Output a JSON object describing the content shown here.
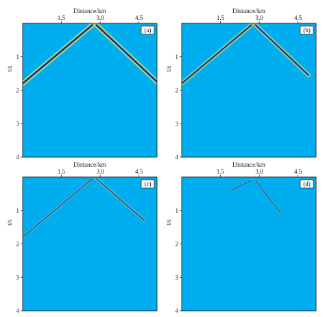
{
  "colors": {
    "background": "#00aeef",
    "peak_dark": "#1a1a6e",
    "peak_mid": "#2f5fd0",
    "lobe_yellow": "#e8e84a",
    "lobe_green": "#7fd88a",
    "frame": "#222222"
  },
  "panels": [
    {
      "tag": "(a)",
      "xlabel": "Distance/km",
      "ylabel": "t/s",
      "xticks": [
        "1.5",
        "3.0",
        "4.5"
      ],
      "yticks": [
        "1",
        "2",
        "3",
        "4"
      ],
      "xrange_km": [
        0,
        5.2
      ],
      "yrange_s": [
        0,
        4
      ],
      "apex_km": 2.75,
      "events": [
        {
          "side": "left",
          "t_start": 0.05,
          "t_end": 1.8,
          "strength": 1.0,
          "extent": 1.0
        },
        {
          "side": "right",
          "t_start": 0.05,
          "t_end": 1.75,
          "strength": 1.0,
          "extent": 1.0
        }
      ]
    },
    {
      "tag": "(b)",
      "xlabel": "Distance/km",
      "ylabel": "t/s",
      "xticks": [
        "1.5",
        "3.0",
        "4.5"
      ],
      "yticks": [
        "1",
        "2",
        "3",
        "4"
      ],
      "xrange_km": [
        0,
        5.2
      ],
      "yrange_s": [
        0,
        4
      ],
      "apex_km": 2.75,
      "events": [
        {
          "side": "left",
          "t_start": 0.05,
          "t_end": 1.8,
          "strength": 0.85,
          "extent": 1.0
        },
        {
          "side": "right",
          "t_start": 0.05,
          "t_end": 1.55,
          "strength": 0.85,
          "extent": 0.88
        }
      ]
    },
    {
      "tag": "(c)",
      "xlabel": "Distance/km",
      "ylabel": "t/s",
      "xticks": [
        "1.5",
        "3.0",
        "4.5"
      ],
      "yticks": [
        "1",
        "2",
        "3",
        "4"
      ],
      "xrange_km": [
        0,
        5.2
      ],
      "yrange_s": [
        0,
        4
      ],
      "apex_km": 2.75,
      "events": [
        {
          "side": "left",
          "t_start": 0.05,
          "t_end": 1.8,
          "strength": 0.45,
          "extent": 1.0
        },
        {
          "side": "right",
          "t_start": 0.05,
          "t_end": 1.3,
          "strength": 0.55,
          "extent": 0.8
        }
      ]
    },
    {
      "tag": "(d)",
      "xlabel": "Distance/km",
      "ylabel": "t/s",
      "xticks": [
        "1.5",
        "3.0",
        "4.5"
      ],
      "yticks": [
        "1",
        "2",
        "3",
        "4"
      ],
      "xrange_km": [
        0,
        5.2
      ],
      "yrange_s": [
        0,
        4
      ],
      "apex_km": 2.75,
      "events": [
        {
          "side": "left",
          "t_start": 0.1,
          "t_end": 0.4,
          "strength": 0.35,
          "extent": 0.3
        },
        {
          "side": "right",
          "t_start": 0.1,
          "t_end": 1.1,
          "strength": 0.35,
          "extent": 0.45
        }
      ]
    }
  ]
}
